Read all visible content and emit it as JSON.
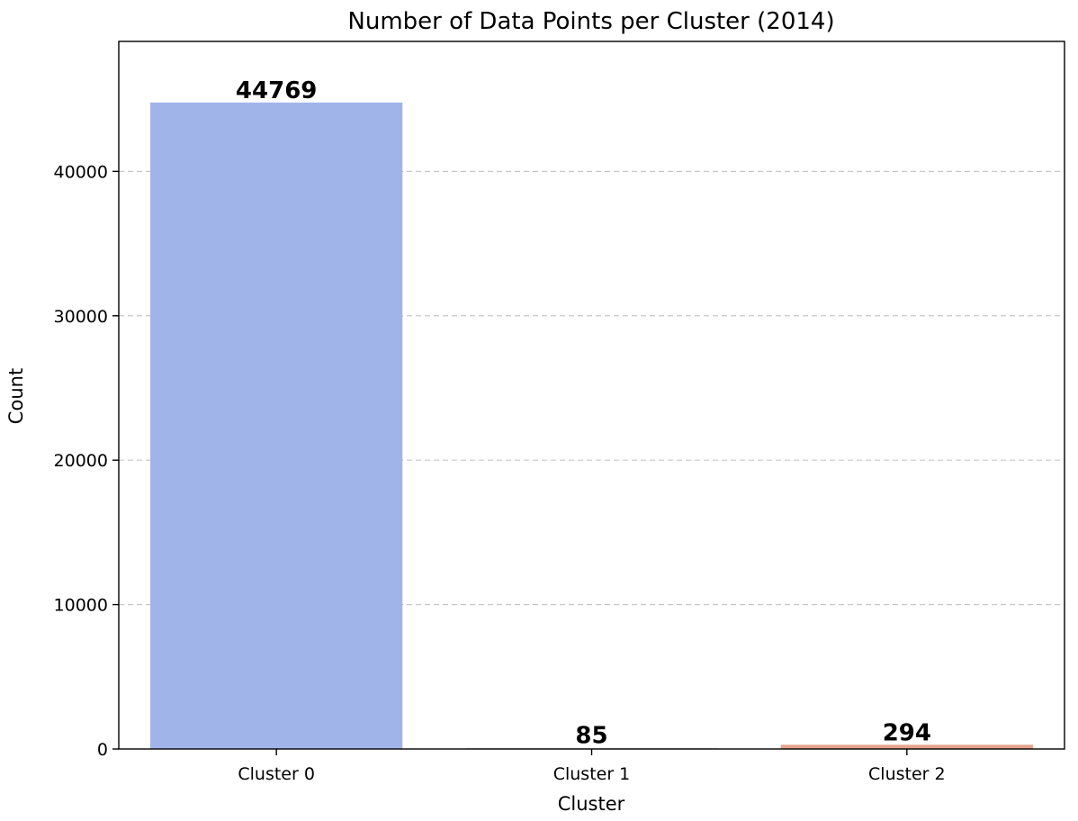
{
  "chart_data": {
    "type": "bar",
    "title": "Number of Data Points per Cluster (2014)",
    "xlabel": "Cluster",
    "ylabel": "Count",
    "categories": [
      "Cluster 0",
      "Cluster 1",
      "Cluster 2"
    ],
    "values": [
      44769,
      85,
      294
    ],
    "data_labels": [
      "44769",
      "85",
      "294"
    ],
    "bar_colors": [
      "#a1b4ea",
      "#dcdcdc",
      "#e6a48c"
    ],
    "ylim": [
      0,
      49000
    ],
    "yticks": [
      0,
      10000,
      20000,
      30000,
      40000
    ],
    "ytick_labels": [
      "0",
      "10000",
      "20000",
      "30000",
      "40000"
    ],
    "grid": "y-dashed",
    "legend": "none"
  }
}
